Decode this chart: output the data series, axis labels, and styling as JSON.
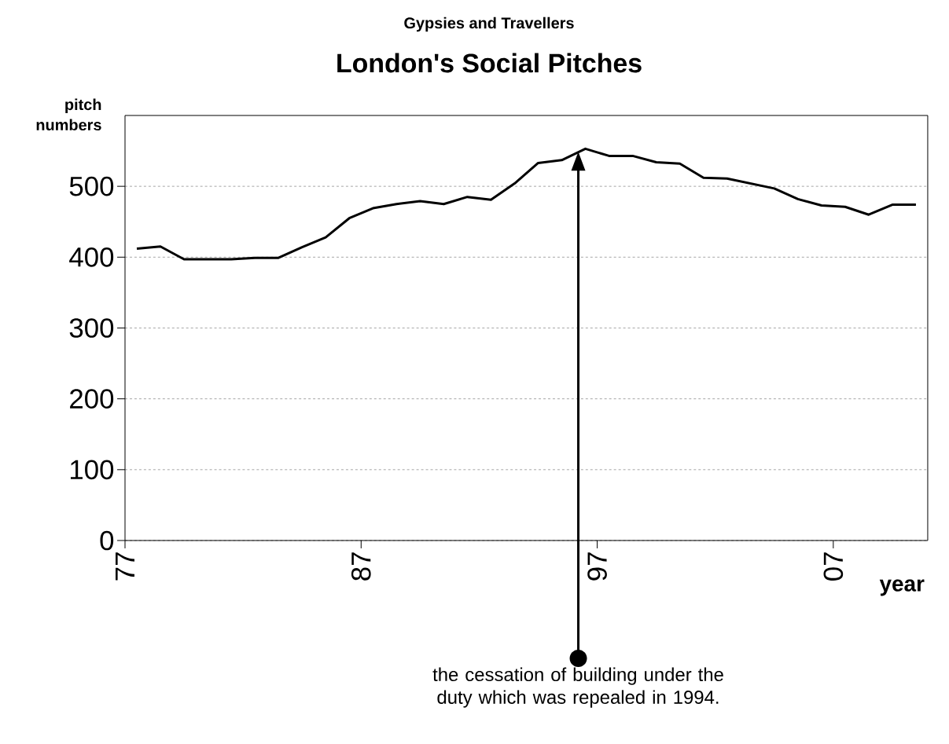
{
  "chart_data": {
    "type": "line",
    "title": "London's Social Pitches",
    "subtitle": "Gypsies and Travellers",
    "xlabel": "year",
    "ylabel": "pitch numbers",
    "x": [
      1977.5,
      1978.5,
      1979.5,
      1980.5,
      1981.5,
      1982.5,
      1983.5,
      1984.5,
      1985.5,
      1986.5,
      1987.5,
      1988.5,
      1989.5,
      1990.5,
      1991.5,
      1992.5,
      1993.5,
      1994.5,
      1995.5,
      1996.5,
      1997.5,
      1998.5,
      1999.5,
      2000.5,
      2001.5,
      2002.5,
      2003.5,
      2004.5,
      2005.5,
      2006.5,
      2007.5,
      2008.5,
      2009.5,
      2010.5
    ],
    "series": [
      {
        "color": "#000000",
        "values": [
          412,
          415,
          397,
          397,
          397,
          399,
          399,
          414,
          428,
          455,
          469,
          475,
          479,
          475,
          485,
          481,
          504,
          533,
          537,
          553,
          543,
          543,
          534,
          532,
          512,
          511,
          504,
          497,
          482,
          473,
          471,
          460,
          474,
          474
        ]
      }
    ],
    "xlim": [
      1977,
      2011
    ],
    "xticks": [
      {
        "value": 1977,
        "label": "77"
      },
      {
        "value": 1987,
        "label": "87"
      },
      {
        "value": 1997,
        "label": "97"
      },
      {
        "value": 2007,
        "label": "07"
      }
    ],
    "ylim": [
      0,
      600
    ],
    "yticks": [
      0,
      100,
      200,
      300,
      400,
      500
    ],
    "grid": "y",
    "line_style": "solid",
    "ref_lines": [
      {
        "axis": "x",
        "value": 1996.2,
        "label": "the cessation of building under the duty which was repealed in 1994.",
        "color": "#000000"
      }
    ]
  }
}
